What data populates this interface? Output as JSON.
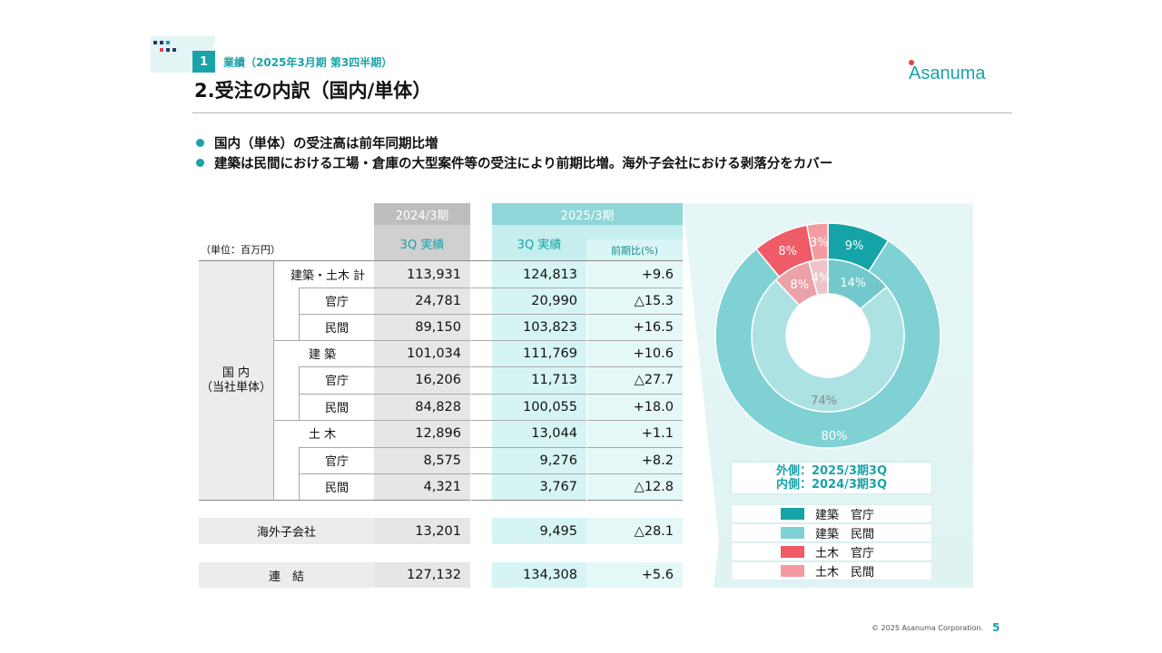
{
  "header": {
    "section_number": "1",
    "section_label": "業績（2025年3月期 第3四半期）",
    "title": "2.受注の内訳（国内/単体）",
    "logo_text": "Asanuma"
  },
  "bullets": [
    "国内（単体）の受注高は前年同期比増",
    "建築は民間における工場・倉庫の大型案件等の受注により前期比増。海外子会社における剥落分をカバー"
  ],
  "table": {
    "unit": "（単位：百万円）",
    "period_prev": "2024/3期",
    "period_curr": "2025/3期",
    "q_prev": "3Q 実績",
    "q_curr": "3Q 実績",
    "yoy": "前期比(%)",
    "group_label": "国 内\n（当社単体）",
    "rows": [
      {
        "label": "建築・土木 計",
        "prev": "113,931",
        "curr": "124,813",
        "yoy": "+9.6"
      },
      {
        "label": "官庁",
        "prev": "24,781",
        "curr": "20,990",
        "yoy": "△15.3"
      },
      {
        "label": "民間",
        "prev": "89,150",
        "curr": "103,823",
        "yoy": "+16.5"
      },
      {
        "label": "建 築",
        "prev": "101,034",
        "curr": "111,769",
        "yoy": "+10.6"
      },
      {
        "label": "官庁",
        "prev": "16,206",
        "curr": "11,713",
        "yoy": "△27.7"
      },
      {
        "label": "民間",
        "prev": "84,828",
        "curr": "100,055",
        "yoy": "+18.0"
      },
      {
        "label": "土 木",
        "prev": "12,896",
        "curr": "13,044",
        "yoy": "+1.1"
      },
      {
        "label": "官庁",
        "prev": "8,575",
        "curr": "9,276",
        "yoy": "+8.2"
      },
      {
        "label": "民間",
        "prev": "4,321",
        "curr": "3,767",
        "yoy": "△12.8"
      }
    ],
    "overseas": {
      "label": "海外子会社",
      "prev": "13,201",
      "curr": "9,495",
      "yoy": "△28.1"
    },
    "consolidated": {
      "label": "連　結",
      "prev": "127,132",
      "curr": "134,308",
      "yoy": "+5.6"
    }
  },
  "chart_data": {
    "type": "pie",
    "subtype": "nested-donut",
    "series": [
      {
        "name": "外側：2025/3期3Q",
        "categories": [
          "建築 官庁",
          "建築 民間",
          "土木 官庁",
          "土木 民間"
        ],
        "values": [
          9,
          80,
          8,
          3
        ]
      },
      {
        "name": "内側：2024/3期3Q",
        "categories": [
          "建築 官庁",
          "建築 民間",
          "土木 官庁",
          "土木 民間"
        ],
        "values": [
          14,
          74,
          8,
          4
        ]
      }
    ],
    "labels_outer": [
      "9%",
      "80%",
      "8%",
      "3%"
    ],
    "labels_inner": [
      "14%",
      "74%",
      "8%",
      "4%"
    ],
    "legend": [
      "建築　官庁",
      "建築　民間",
      "土木　官庁",
      "土木　民間"
    ],
    "colors": [
      "#14a3a6",
      "#7fd1d4",
      "#ef5b66",
      "#f49ba2"
    ],
    "outer_label": "外側：2025/3期3Q",
    "inner_label": "内側：2024/3期3Q"
  },
  "footer": {
    "copyright": "© 2025 Asanuma Corporation.",
    "page": "5"
  },
  "colors": {
    "accent": "#1aa3a8"
  }
}
